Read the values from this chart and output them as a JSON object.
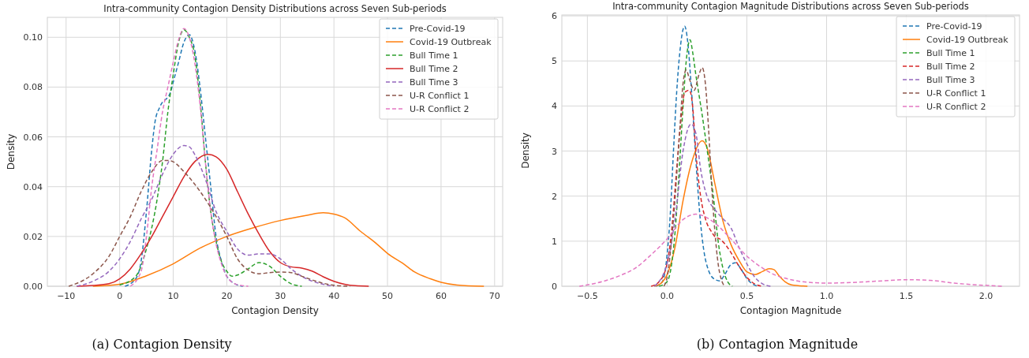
{
  "chart_data": [
    {
      "type": "line",
      "title": "Intra-community Contagion Density Distributions across Seven Sub-periods",
      "xlabel": "Contagion Density",
      "ylabel": "Density",
      "annotations": [
        "(a) Contagion Density"
      ],
      "grid": true,
      "legend": "top right",
      "xlim": [
        -13.5,
        71.5
      ],
      "ylim": [
        0,
        0.108
      ],
      "xticks": [
        {
          "value": -10,
          "label": "−10"
        },
        0,
        10,
        20,
        30,
        40,
        50,
        60,
        70
      ],
      "yticks": [
        {
          "value": 0,
          "label": "0.00"
        },
        {
          "value": 0.02,
          "label": "0.02"
        },
        {
          "value": 0.04,
          "label": "0.04"
        },
        {
          "value": 0.06,
          "label": "0.06"
        },
        {
          "value": 0.08,
          "label": "0.08"
        },
        {
          "value": 0.1,
          "label": "0.10"
        }
      ],
      "series": [
        {
          "name": "Pre-Covid-19",
          "color": "#1f77b4",
          "line_style": "dashed",
          "x": [
            1,
            3,
            4,
            5,
            6,
            6.6,
            7.5,
            9.5,
            10,
            11,
            12,
            13,
            14,
            15,
            16,
            17,
            18,
            19,
            20,
            22,
            23
          ],
          "values": [
            0,
            0.003,
            0.01,
            0.03,
            0.055,
            0.066,
            0.072,
            0.078,
            0.082,
            0.09,
            0.098,
            0.101,
            0.095,
            0.08,
            0.06,
            0.04,
            0.02,
            0.01,
            0.004,
            0.0005,
            0
          ]
        },
        {
          "name": "Covid-19 Outbreak",
          "color": "#ff7f0e",
          "line_style": "solid",
          "x": [
            -5,
            0,
            5,
            10,
            15,
            20,
            25,
            30,
            35,
            38,
            40,
            42,
            45,
            48,
            50,
            53,
            55,
            58,
            60,
            63,
            68
          ],
          "values": [
            0,
            0.0008,
            0.0042,
            0.009,
            0.0153,
            0.02,
            0.0235,
            0.0264,
            0.0285,
            0.0295,
            0.029,
            0.0275,
            0.022,
            0.017,
            0.0132,
            0.009,
            0.0058,
            0.003,
            0.0016,
            0.0005,
            0
          ]
        },
        {
          "name": "Bull Time 1",
          "color": "#2ca02c",
          "line_style": "dashed",
          "x": [
            0,
            3,
            5,
            7,
            8,
            9,
            10,
            11,
            12,
            13,
            14,
            15,
            16,
            17,
            18,
            19,
            20,
            21,
            22,
            24,
            26,
            28,
            30,
            32,
            34
          ],
          "values": [
            0.0005,
            0.004,
            0.015,
            0.035,
            0.05,
            0.07,
            0.085,
            0.098,
            0.103,
            0.1,
            0.093,
            0.075,
            0.05,
            0.03,
            0.018,
            0.01,
            0.006,
            0.004,
            0.0045,
            0.007,
            0.0095,
            0.008,
            0.004,
            0.001,
            0
          ]
        },
        {
          "name": "Bull Time 2",
          "color": "#d62728",
          "line_style": "solid",
          "x": [
            -8,
            -5,
            -2,
            0,
            2,
            4,
            6,
            8,
            10,
            12,
            14,
            16.5,
            18,
            20,
            22,
            24,
            26,
            28,
            30,
            32,
            34,
            36,
            38,
            40,
            42,
            44,
            46.5
          ],
          "values": [
            0,
            0.0003,
            0.001,
            0.003,
            0.007,
            0.013,
            0.02,
            0.028,
            0.036,
            0.044,
            0.05,
            0.053,
            0.052,
            0.047,
            0.038,
            0.029,
            0.021,
            0.014,
            0.0095,
            0.0078,
            0.0073,
            0.006,
            0.0038,
            0.002,
            0.0008,
            0.0002,
            0
          ]
        },
        {
          "name": "Bull Time 3",
          "color": "#9467bd",
          "line_style": "dashed",
          "x": [
            -8,
            -5,
            -2,
            0,
            2,
            4,
            6,
            8,
            10,
            12,
            13,
            14,
            16,
            18,
            20,
            22,
            24,
            26,
            28,
            30,
            32,
            34,
            36,
            38,
            40
          ],
          "values": [
            0,
            0.002,
            0.006,
            0.011,
            0.018,
            0.027,
            0.035,
            0.045,
            0.053,
            0.0565,
            0.056,
            0.053,
            0.043,
            0.03,
            0.022,
            0.015,
            0.0125,
            0.013,
            0.013,
            0.011,
            0.007,
            0.004,
            0.002,
            0.0008,
            0
          ]
        },
        {
          "name": "U-R Conflict 1",
          "color": "#8c564b",
          "line_style": "dashed",
          "x": [
            -9.5,
            -5,
            -2,
            0,
            2,
            4,
            6,
            8,
            9,
            10,
            12,
            14,
            16,
            18,
            20,
            22,
            24,
            26,
            28,
            30,
            32,
            34,
            36,
            38,
            40,
            43
          ],
          "values": [
            0,
            0.005,
            0.012,
            0.02,
            0.028,
            0.038,
            0.046,
            0.0505,
            0.0505,
            0.05,
            0.046,
            0.041,
            0.035,
            0.028,
            0.02,
            0.011,
            0.0065,
            0.005,
            0.0055,
            0.0057,
            0.0055,
            0.004,
            0.0025,
            0.0012,
            0.0004,
            0
          ]
        },
        {
          "name": "U-R Conflict 2",
          "color": "#e377c2",
          "line_style": "dashed",
          "x": [
            2,
            4,
            5,
            6,
            7,
            8,
            9,
            10,
            11,
            12,
            13,
            14,
            15,
            16,
            17,
            18,
            19,
            20,
            22,
            24
          ],
          "values": [
            0,
            0.006,
            0.02,
            0.04,
            0.055,
            0.07,
            0.08,
            0.09,
            0.099,
            0.1035,
            0.1,
            0.09,
            0.073,
            0.05,
            0.03,
            0.017,
            0.009,
            0.004,
            0.0006,
            0
          ]
        }
      ]
    },
    {
      "type": "line",
      "title": "Intra-community Contagion Magnitude Distributions across Seven Sub-periods",
      "xlabel": "Contagion Magnitude",
      "ylabel": "Density",
      "annotations": [
        "(b) Contagion Magnitude"
      ],
      "grid": true,
      "legend": "top right",
      "xlim": [
        -0.66,
        2.21
      ],
      "ylim": [
        0,
        6.02
      ],
      "xticks": [
        {
          "value": -0.5,
          "label": "−0.5"
        },
        {
          "value": 0,
          "label": "0.0"
        },
        0.5,
        {
          "value": 1,
          "label": "1.0"
        },
        1.5,
        {
          "value": 2,
          "label": "2.0"
        }
      ],
      "yticks": [
        0,
        1,
        2,
        3,
        4,
        5,
        6
      ],
      "series": [
        {
          "name": "Pre-Covid-19",
          "color": "#1f77b4",
          "line_style": "dashed",
          "x": [
            -0.07,
            -0.03,
            0,
            0.02,
            0.04,
            0.06,
            0.08,
            0.1,
            0.11,
            0.13,
            0.15,
            0.17,
            0.19,
            0.21,
            0.23,
            0.26,
            0.3,
            0.33,
            0.36,
            0.4,
            0.43,
            0.46,
            0.5,
            0.54,
            0.57
          ],
          "values": [
            0,
            0.1,
            0.7,
            1.6,
            3.0,
            4.3,
            5.2,
            5.7,
            5.77,
            5.4,
            4.5,
            3.4,
            2.3,
            1.4,
            0.8,
            0.35,
            0.15,
            0.12,
            0.25,
            0.48,
            0.52,
            0.4,
            0.17,
            0.04,
            0
          ]
        },
        {
          "name": "Covid-19 Outbreak",
          "color": "#ff7f0e",
          "line_style": "solid",
          "x": [
            -0.08,
            -0.04,
            0,
            0.05,
            0.1,
            0.15,
            0.22,
            0.25,
            0.3,
            0.35,
            0.4,
            0.45,
            0.5,
            0.55,
            0.6,
            0.64,
            0.67,
            0.7,
            0.74,
            0.78,
            0.88
          ],
          "values": [
            0,
            0.06,
            0.26,
            0.87,
            1.9,
            2.7,
            3.23,
            3.08,
            2.27,
            1.45,
            0.93,
            0.58,
            0.32,
            0.26,
            0.33,
            0.39,
            0.37,
            0.24,
            0.1,
            0.03,
            0
          ]
        },
        {
          "name": "Bull Time 1",
          "color": "#2ca02c",
          "line_style": "dashed",
          "x": [
            -0.05,
            0,
            0.05,
            0.08,
            0.1,
            0.12,
            0.144,
            0.16,
            0.18,
            0.22,
            0.26,
            0.29,
            0.32,
            0.35,
            0.38,
            0.41
          ],
          "values": [
            0,
            0.1,
            1.2,
            2.8,
            4.0,
            5.0,
            5.47,
            5.2,
            4.7,
            3.8,
            2.8,
            2.0,
            1.0,
            0.4,
            0.1,
            0
          ]
        },
        {
          "name": "Bull Time 2",
          "color": "#d62728",
          "line_style": "dashed",
          "x": [
            -0.1,
            -0.05,
            0,
            0.03,
            0.06,
            0.09,
            0.11,
            0.14,
            0.16,
            0.18,
            0.21,
            0.24,
            0.28,
            0.3,
            0.33,
            0.36,
            0.4,
            0.45,
            0.5,
            0.55,
            0.6
          ],
          "values": [
            0,
            0.1,
            0.5,
            1.3,
            2.6,
            3.8,
            4.3,
            4.35,
            4.0,
            3.0,
            2.0,
            1.5,
            1.2,
            1.1,
            1.05,
            0.95,
            0.75,
            0.45,
            0.2,
            0.05,
            0
          ]
        },
        {
          "name": "Bull Time 3",
          "color": "#9467bd",
          "line_style": "dashed",
          "x": [
            -0.08,
            0,
            0.05,
            0.1,
            0.15,
            0.18,
            0.21,
            0.25,
            0.3,
            0.35,
            0.4,
            0.45,
            0.5,
            0.55,
            0.6,
            0.65
          ],
          "values": [
            0,
            0.5,
            1.5,
            3.0,
            3.6,
            3.4,
            2.6,
            2.0,
            1.7,
            1.5,
            1.3,
            0.87,
            0.5,
            0.2,
            0.05,
            0
          ]
        },
        {
          "name": "U-R Conflict 1",
          "color": "#8c564b",
          "line_style": "dashed",
          "x": [
            -0.02,
            0,
            0.04,
            0.08,
            0.1,
            0.12,
            0.14,
            0.17,
            0.2,
            0.22,
            0.24,
            0.26,
            0.28,
            0.3,
            0.32,
            0.34,
            0.36
          ],
          "values": [
            0,
            0.2,
            1.5,
            3.5,
            4.5,
            4.8,
            4.6,
            4.35,
            4.7,
            4.85,
            4.5,
            3.5,
            2.2,
            1.2,
            0.5,
            0.15,
            0
          ]
        },
        {
          "name": "U-R Conflict 2",
          "color": "#e377c2",
          "line_style": "dashed",
          "x": [
            -0.55,
            -0.5,
            -0.4,
            -0.3,
            -0.2,
            -0.1,
            0,
            0.1,
            0.18,
            0.3,
            0.4,
            0.5,
            0.6,
            0.67,
            0.75,
            0.85,
            1.0,
            1.2,
            1.35,
            1.5,
            1.65,
            1.8,
            1.9,
            2.0,
            2.1
          ],
          "values": [
            0,
            0.03,
            0.11,
            0.23,
            0.4,
            0.7,
            1.05,
            1.48,
            1.6,
            1.4,
            1.05,
            0.67,
            0.4,
            0.26,
            0.17,
            0.1,
            0.07,
            0.09,
            0.12,
            0.145,
            0.13,
            0.07,
            0.04,
            0.02,
            0
          ]
        }
      ]
    }
  ]
}
